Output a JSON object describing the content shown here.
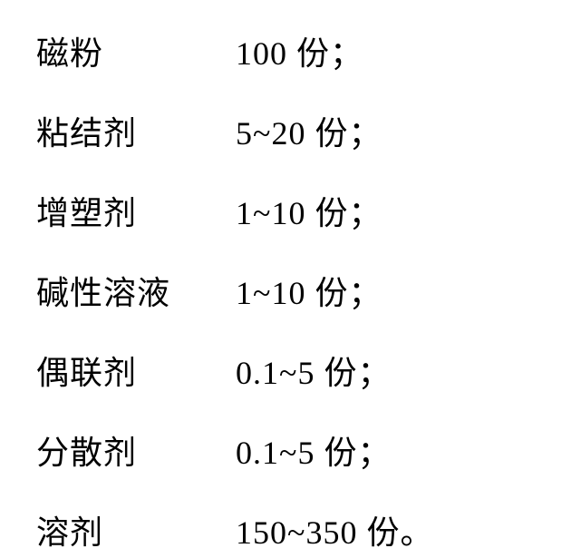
{
  "table": {
    "rows": [
      {
        "name": "磁粉",
        "value": "100 份；"
      },
      {
        "name": "粘结剂",
        "value": "5~20 份；"
      },
      {
        "name": "增塑剂",
        "value": "1~10 份；"
      },
      {
        "name": "碱性溶液",
        "value": "1~10 份；"
      },
      {
        "name": "偶联剂",
        "value": "0.1~5 份；"
      },
      {
        "name": "分散剂",
        "value": "0.1~5 份；"
      },
      {
        "name": "溶剂",
        "value": "150~350 份。"
      }
    ],
    "styles": {
      "font_size": 36,
      "font_family": "SimSun",
      "text_color": "#000000",
      "background_color": "#ffffff",
      "name_column_width": 220,
      "row_spacing": 36
    }
  }
}
